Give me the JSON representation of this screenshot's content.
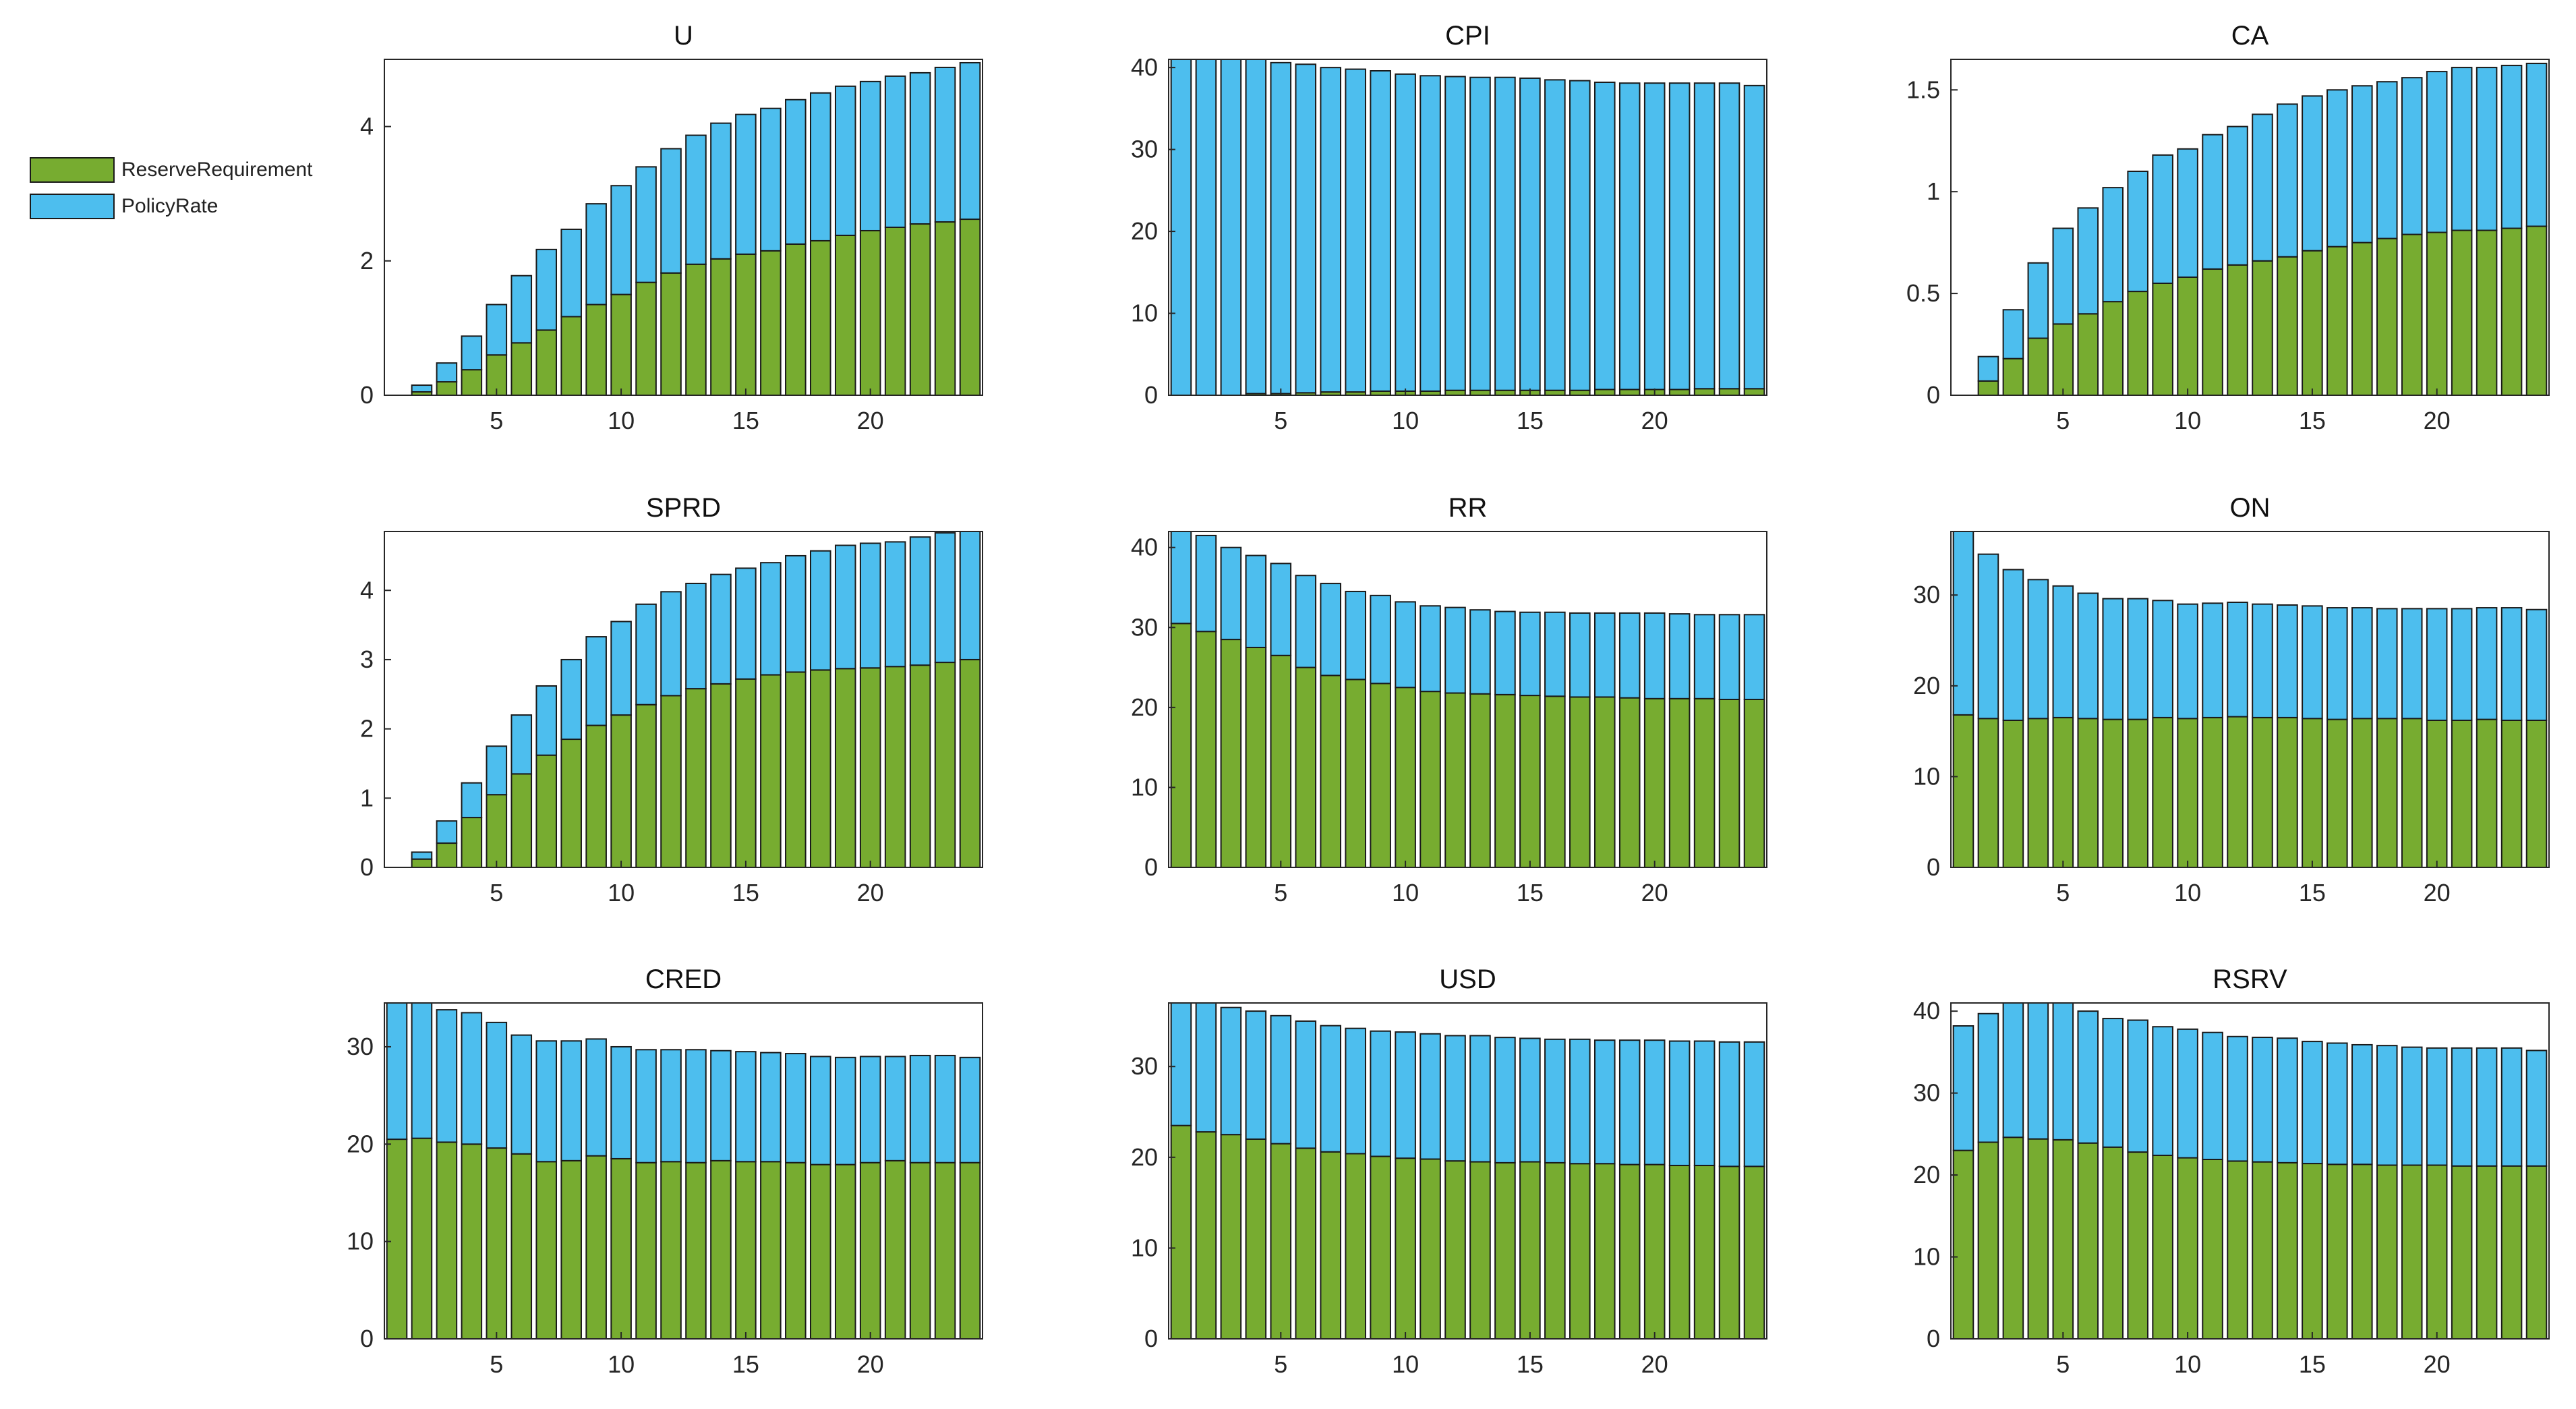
{
  "legend": {
    "entries": [
      {
        "label": "ReserveRequirement",
        "color": "#77AC30"
      },
      {
        "label": "PolicyRate",
        "color": "#4DBEEE"
      }
    ]
  },
  "chart_data": [
    {
      "type": "bar",
      "stacked": true,
      "title": "U",
      "categories": [
        1,
        2,
        3,
        4,
        5,
        6,
        7,
        8,
        9,
        10,
        11,
        12,
        13,
        14,
        15,
        16,
        17,
        18,
        19,
        20,
        21,
        22,
        23,
        24
      ],
      "xticks": [
        5,
        10,
        15,
        20
      ],
      "xlim": [
        0.5,
        24.5
      ],
      "ylim": [
        0,
        5
      ],
      "yticks": [
        0,
        2,
        4
      ],
      "series": [
        {
          "name": "ReserveRequirement",
          "color": "#77AC30",
          "values": [
            0,
            0.05,
            0.2,
            0.38,
            0.6,
            0.78,
            0.97,
            1.17,
            1.35,
            1.5,
            1.68,
            1.82,
            1.95,
            2.03,
            2.1,
            2.15,
            2.25,
            2.3,
            2.38,
            2.45,
            2.5,
            2.55,
            2.58,
            2.62
          ]
        },
        {
          "name": "PolicyRate",
          "color": "#4DBEEE",
          "values": [
            0,
            0.1,
            0.28,
            0.5,
            0.75,
            1.0,
            1.2,
            1.3,
            1.5,
            1.62,
            1.72,
            1.85,
            1.92,
            2.02,
            2.08,
            2.12,
            2.15,
            2.2,
            2.22,
            2.22,
            2.25,
            2.25,
            2.3,
            2.33
          ]
        }
      ]
    },
    {
      "type": "bar",
      "stacked": true,
      "title": "CPI",
      "categories": [
        1,
        2,
        3,
        4,
        5,
        6,
        7,
        8,
        9,
        10,
        11,
        12,
        13,
        14,
        15,
        16,
        17,
        18,
        19,
        20,
        21,
        22,
        23,
        24
      ],
      "xticks": [
        5,
        10,
        15,
        20
      ],
      "xlim": [
        0.5,
        24.5
      ],
      "ylim": [
        0,
        41
      ],
      "yticks": [
        0,
        10,
        20,
        30,
        40
      ],
      "series": [
        {
          "name": "ReserveRequirement",
          "color": "#77AC30",
          "values": [
            0,
            0,
            0,
            0.2,
            0.2,
            0.3,
            0.4,
            0.4,
            0.5,
            0.5,
            0.5,
            0.6,
            0.6,
            0.6,
            0.6,
            0.6,
            0.6,
            0.7,
            0.7,
            0.7,
            0.7,
            0.8,
            0.8,
            0.8
          ]
        },
        {
          "name": "PolicyRate",
          "color": "#4DBEEE",
          "values": [
            41,
            41,
            41,
            40.8,
            40.4,
            40.1,
            39.6,
            39.4,
            39.1,
            38.7,
            38.5,
            38.3,
            38.2,
            38.2,
            38.1,
            37.9,
            37.8,
            37.5,
            37.4,
            37.4,
            37.4,
            37.3,
            37.3,
            37
          ]
        }
      ]
    },
    {
      "type": "bar",
      "stacked": true,
      "title": "CA",
      "categories": [
        1,
        2,
        3,
        4,
        5,
        6,
        7,
        8,
        9,
        10,
        11,
        12,
        13,
        14,
        15,
        16,
        17,
        18,
        19,
        20,
        21,
        22,
        23,
        24
      ],
      "xticks": [
        5,
        10,
        15,
        20
      ],
      "xlim": [
        0.5,
        24.5
      ],
      "ylim": [
        0,
        1.65
      ],
      "yticks": [
        0,
        0.5,
        1,
        1.5
      ],
      "series": [
        {
          "name": "ReserveRequirement",
          "color": "#77AC30",
          "values": [
            0,
            0.07,
            0.18,
            0.28,
            0.35,
            0.4,
            0.46,
            0.51,
            0.55,
            0.58,
            0.62,
            0.64,
            0.66,
            0.68,
            0.71,
            0.73,
            0.75,
            0.77,
            0.79,
            0.8,
            0.81,
            0.81,
            0.82,
            0.83
          ]
        },
        {
          "name": "PolicyRate",
          "color": "#4DBEEE",
          "values": [
            0,
            0.12,
            0.24,
            0.37,
            0.47,
            0.52,
            0.56,
            0.59,
            0.63,
            0.63,
            0.66,
            0.68,
            0.72,
            0.75,
            0.76,
            0.77,
            0.77,
            0.77,
            0.77,
            0.79,
            0.8,
            0.8,
            0.8,
            0.8
          ]
        }
      ]
    },
    {
      "type": "bar",
      "stacked": true,
      "title": "SPRD",
      "categories": [
        1,
        2,
        3,
        4,
        5,
        6,
        7,
        8,
        9,
        10,
        11,
        12,
        13,
        14,
        15,
        16,
        17,
        18,
        19,
        20,
        21,
        22,
        23,
        24
      ],
      "xticks": [
        5,
        10,
        15,
        20
      ],
      "xlim": [
        0.5,
        24.5
      ],
      "ylim": [
        0,
        4.85
      ],
      "yticks": [
        0,
        1,
        2,
        3,
        4
      ],
      "series": [
        {
          "name": "ReserveRequirement",
          "color": "#77AC30",
          "values": [
            0,
            0.12,
            0.35,
            0.72,
            1.05,
            1.35,
            1.62,
            1.85,
            2.05,
            2.2,
            2.35,
            2.48,
            2.58,
            2.65,
            2.72,
            2.78,
            2.82,
            2.85,
            2.87,
            2.88,
            2.9,
            2.92,
            2.96,
            3.0
          ]
        },
        {
          "name": "PolicyRate",
          "color": "#4DBEEE",
          "values": [
            0,
            0.1,
            0.32,
            0.5,
            0.7,
            0.85,
            1.0,
            1.15,
            1.28,
            1.35,
            1.45,
            1.5,
            1.52,
            1.58,
            1.6,
            1.62,
            1.68,
            1.72,
            1.78,
            1.8,
            1.8,
            1.85,
            1.87,
            1.85
          ]
        }
      ]
    },
    {
      "type": "bar",
      "stacked": true,
      "title": "RR",
      "categories": [
        1,
        2,
        3,
        4,
        5,
        6,
        7,
        8,
        9,
        10,
        11,
        12,
        13,
        14,
        15,
        16,
        17,
        18,
        19,
        20,
        21,
        22,
        23,
        24
      ],
      "xticks": [
        5,
        10,
        15,
        20
      ],
      "xlim": [
        0.5,
        24.5
      ],
      "ylim": [
        0,
        42
      ],
      "yticks": [
        0,
        10,
        20,
        30,
        40
      ],
      "series": [
        {
          "name": "ReserveRequirement",
          "color": "#77AC30",
          "values": [
            30.5,
            29.5,
            28.5,
            27.5,
            26.5,
            25,
            24,
            23.5,
            23,
            22.5,
            22,
            21.8,
            21.7,
            21.6,
            21.5,
            21.4,
            21.3,
            21.3,
            21.2,
            21.1,
            21.1,
            21.1,
            21.0,
            21.0
          ]
        },
        {
          "name": "PolicyRate",
          "color": "#4DBEEE",
          "values": [
            12,
            12,
            11.5,
            11.5,
            11.5,
            11.5,
            11.5,
            11,
            11,
            10.7,
            10.7,
            10.7,
            10.5,
            10.4,
            10.4,
            10.5,
            10.5,
            10.5,
            10.6,
            10.7,
            10.6,
            10.5,
            10.6,
            10.6
          ]
        }
      ]
    },
    {
      "type": "bar",
      "stacked": true,
      "title": "ON",
      "categories": [
        1,
        2,
        3,
        4,
        5,
        6,
        7,
        8,
        9,
        10,
        11,
        12,
        13,
        14,
        15,
        16,
        17,
        18,
        19,
        20,
        21,
        22,
        23,
        24
      ],
      "xticks": [
        5,
        10,
        15,
        20
      ],
      "xlim": [
        0.5,
        24.5
      ],
      "ylim": [
        0,
        37
      ],
      "yticks": [
        0,
        10,
        20,
        30
      ],
      "series": [
        {
          "name": "ReserveRequirement",
          "color": "#77AC30",
          "values": [
            16.8,
            16.4,
            16.2,
            16.4,
            16.5,
            16.4,
            16.3,
            16.3,
            16.5,
            16.4,
            16.5,
            16.6,
            16.5,
            16.5,
            16.4,
            16.3,
            16.4,
            16.4,
            16.4,
            16.2,
            16.2,
            16.3,
            16.2,
            16.2
          ]
        },
        {
          "name": "PolicyRate",
          "color": "#4DBEEE",
          "values": [
            20.2,
            18.1,
            16.6,
            15.3,
            14.5,
            13.8,
            13.3,
            13.3,
            12.9,
            12.6,
            12.6,
            12.6,
            12.5,
            12.4,
            12.4,
            12.3,
            12.2,
            12.1,
            12.1,
            12.3,
            12.3,
            12.3,
            12.4,
            12.2
          ]
        }
      ]
    },
    {
      "type": "bar",
      "stacked": true,
      "title": "CRED",
      "categories": [
        1,
        2,
        3,
        4,
        5,
        6,
        7,
        8,
        9,
        10,
        11,
        12,
        13,
        14,
        15,
        16,
        17,
        18,
        19,
        20,
        21,
        22,
        23,
        24
      ],
      "xticks": [
        5,
        10,
        15,
        20
      ],
      "xlim": [
        0.5,
        24.5
      ],
      "ylim": [
        0,
        34.5
      ],
      "yticks": [
        0,
        10,
        20,
        30
      ],
      "series": [
        {
          "name": "ReserveRequirement",
          "color": "#77AC30",
          "values": [
            20.5,
            20.6,
            20.2,
            20,
            19.6,
            19,
            18.2,
            18.3,
            18.8,
            18.5,
            18.1,
            18.2,
            18.1,
            18.3,
            18.2,
            18.2,
            18.1,
            17.9,
            17.9,
            18.1,
            18.3,
            18.1,
            18.1,
            18.1
          ]
        },
        {
          "name": "PolicyRate",
          "color": "#4DBEEE",
          "values": [
            14,
            14,
            13.6,
            13.5,
            12.9,
            12.2,
            12.4,
            12.3,
            12,
            11.5,
            11.6,
            11.5,
            11.6,
            11.3,
            11.3,
            11.2,
            11.2,
            11.1,
            11,
            10.9,
            10.7,
            11,
            11,
            10.8
          ]
        }
      ]
    },
    {
      "type": "bar",
      "stacked": true,
      "title": "USD",
      "categories": [
        1,
        2,
        3,
        4,
        5,
        6,
        7,
        8,
        9,
        10,
        11,
        12,
        13,
        14,
        15,
        16,
        17,
        18,
        19,
        20,
        21,
        22,
        23,
        24
      ],
      "xticks": [
        5,
        10,
        15,
        20
      ],
      "xlim": [
        0.5,
        24.5
      ],
      "ylim": [
        0,
        37
      ],
      "yticks": [
        0,
        10,
        20,
        30
      ],
      "series": [
        {
          "name": "ReserveRequirement",
          "color": "#77AC30",
          "values": [
            23.5,
            22.8,
            22.5,
            22,
            21.5,
            21,
            20.6,
            20.4,
            20.1,
            19.9,
            19.8,
            19.6,
            19.5,
            19.4,
            19.5,
            19.4,
            19.3,
            19.3,
            19.2,
            19.2,
            19.1,
            19.1,
            19.0,
            19.0
          ]
        },
        {
          "name": "PolicyRate",
          "color": "#4DBEEE",
          "values": [
            13.5,
            14.2,
            14,
            14.1,
            14.1,
            14,
            13.9,
            13.8,
            13.8,
            13.9,
            13.8,
            13.8,
            13.9,
            13.8,
            13.6,
            13.6,
            13.7,
            13.6,
            13.7,
            13.7,
            13.7,
            13.7,
            13.7,
            13.7
          ]
        }
      ]
    },
    {
      "type": "bar",
      "stacked": true,
      "title": "RSRV",
      "categories": [
        1,
        2,
        3,
        4,
        5,
        6,
        7,
        8,
        9,
        10,
        11,
        12,
        13,
        14,
        15,
        16,
        17,
        18,
        19,
        20,
        21,
        22,
        23,
        24
      ],
      "xticks": [
        5,
        10,
        15,
        20
      ],
      "xlim": [
        0.5,
        24.5
      ],
      "ylim": [
        0,
        41
      ],
      "yticks": [
        0,
        10,
        20,
        30,
        40
      ],
      "series": [
        {
          "name": "ReserveRequirement",
          "color": "#77AC30",
          "values": [
            23,
            24,
            24.6,
            24.4,
            24.3,
            23.9,
            23.4,
            22.8,
            22.4,
            22.1,
            21.9,
            21.7,
            21.6,
            21.5,
            21.4,
            21.3,
            21.3,
            21.2,
            21.2,
            21.2,
            21.1,
            21.1,
            21.1,
            21.1
          ]
        },
        {
          "name": "PolicyRate",
          "color": "#4DBEEE",
          "values": [
            15.2,
            15.7,
            16.4,
            16.6,
            16.7,
            16.1,
            15.7,
            16.1,
            15.7,
            15.7,
            15.5,
            15.2,
            15.2,
            15.2,
            14.9,
            14.8,
            14.6,
            14.6,
            14.4,
            14.3,
            14.4,
            14.4,
            14.4,
            14.1
          ]
        }
      ]
    }
  ]
}
